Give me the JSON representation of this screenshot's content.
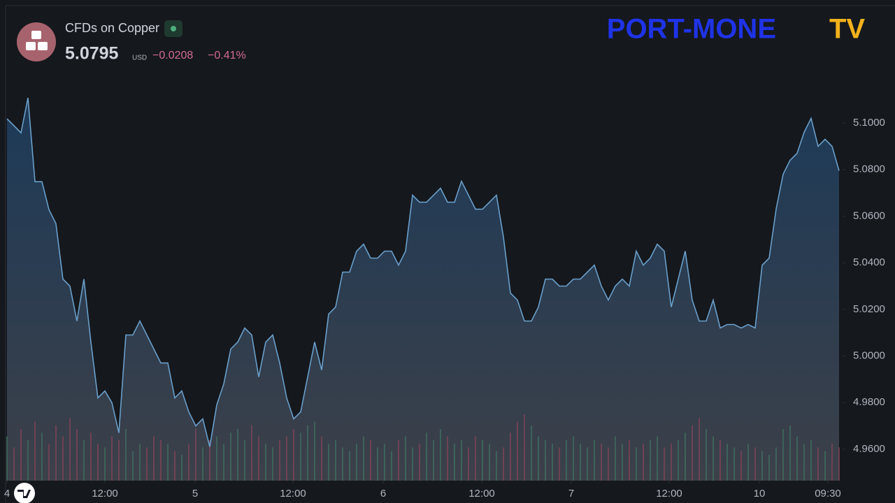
{
  "header": {
    "symbol_name": "CFDs on Copper",
    "price": "5.0795",
    "currency": "USD",
    "change": "−0.0208",
    "change_percent": "−0.41%"
  },
  "brand": {
    "name": "PORT-MONE",
    "suffix": "TV"
  },
  "chart_data": {
    "type": "area",
    "series": [
      {
        "color": "#6a9fca",
        "values": [
          5.1018,
          5.0988,
          5.0958,
          5.1108,
          5.0748,
          5.0748,
          5.0628,
          5.0568,
          5.033,
          5.03,
          5.015,
          5.033,
          5.006,
          4.982,
          4.985,
          4.98,
          4.967,
          5.009,
          5.009,
          5.015,
          5.009,
          5.003,
          4.997,
          4.997,
          4.982,
          4.985,
          4.976,
          4.97,
          4.973,
          4.961,
          4.979,
          4.988,
          5.003,
          5.006,
          5.012,
          5.009,
          4.991,
          5.006,
          5.009,
          4.997,
          4.982,
          4.973,
          4.976,
          4.991,
          5.006,
          4.994,
          5.018,
          5.021,
          5.036,
          5.036,
          5.045,
          5.048,
          5.042,
          5.042,
          5.045,
          5.045,
          5.039,
          5.045,
          5.069,
          5.066,
          5.066,
          5.069,
          5.072,
          5.066,
          5.066,
          5.075,
          5.069,
          5.063,
          5.063,
          5.066,
          5.069,
          5.051,
          5.027,
          5.024,
          5.015,
          5.015,
          5.021,
          5.033,
          5.033,
          5.03,
          5.03,
          5.033,
          5.033,
          5.036,
          5.039,
          5.03,
          5.024,
          5.03,
          5.033,
          5.03,
          5.045,
          5.039,
          5.042,
          5.048,
          5.045,
          5.021,
          5.033,
          5.045,
          5.024,
          5.015,
          5.015,
          5.024,
          5.012,
          5.0135,
          5.0135,
          5.012,
          5.0135,
          5.012,
          5.039,
          5.042,
          5.063,
          5.078,
          5.084,
          5.087,
          5.096,
          5.102,
          5.09,
          5.093,
          5.09,
          5.0795
        ]
      }
    ],
    "volume": {
      "up_color": "#3e6b5c",
      "down_color": "#7c4356",
      "values": [
        60,
        45,
        70,
        55,
        80,
        65,
        50,
        75,
        60,
        85,
        70,
        55,
        65,
        50,
        45,
        60,
        55,
        70,
        40,
        50,
        45,
        60,
        55,
        50,
        40,
        35,
        50,
        70,
        45,
        55,
        60,
        50,
        65,
        70,
        55,
        75,
        60,
        50,
        45,
        55,
        60,
        70,
        65,
        75,
        80,
        60,
        50,
        55,
        45,
        40,
        50,
        60,
        55,
        45,
        50,
        40,
        55,
        60,
        45,
        50,
        65,
        55,
        70,
        60,
        50,
        55,
        45,
        60,
        55,
        50,
        40,
        45,
        65,
        80,
        90,
        75,
        60,
        55,
        50,
        45,
        55,
        60,
        50,
        45,
        55,
        50,
        45,
        60,
        50,
        55,
        45,
        50,
        55,
        60,
        45,
        50,
        55,
        65,
        75,
        85,
        70,
        60,
        55,
        50,
        45,
        40,
        50,
        45,
        40,
        35,
        45,
        70,
        75,
        60,
        50,
        55,
        45,
        40,
        50,
        45
      ]
    },
    "xlim": [
      0,
      119
    ],
    "xticks": [
      {
        "value": 0,
        "label": "4"
      },
      {
        "value": 14,
        "label": "12:00"
      },
      {
        "value": 26.9,
        "label": "5"
      },
      {
        "value": 40.9,
        "label": "12:00"
      },
      {
        "value": 53.8,
        "label": "6"
      },
      {
        "value": 67.9,
        "label": "12:00"
      },
      {
        "value": 80.7,
        "label": "7"
      },
      {
        "value": 94.7,
        "label": "12:00"
      },
      {
        "value": 107.6,
        "label": "10"
      },
      {
        "value": 117.4,
        "label": "09:30"
      }
    ],
    "ylim": [
      4.9465,
      5.1243
    ],
    "yticks": [
      {
        "value": 4.96,
        "label": "4.9600"
      },
      {
        "value": 4.98,
        "label": "4.9800"
      },
      {
        "value": 5.0,
        "label": "5.0000"
      },
      {
        "value": 5.02,
        "label": "5.0200"
      },
      {
        "value": 5.04,
        "label": "5.0400"
      },
      {
        "value": 5.06,
        "label": "5.0600"
      },
      {
        "value": 5.08,
        "label": "5.0800"
      },
      {
        "value": 5.1,
        "label": "5.1000"
      }
    ]
  }
}
